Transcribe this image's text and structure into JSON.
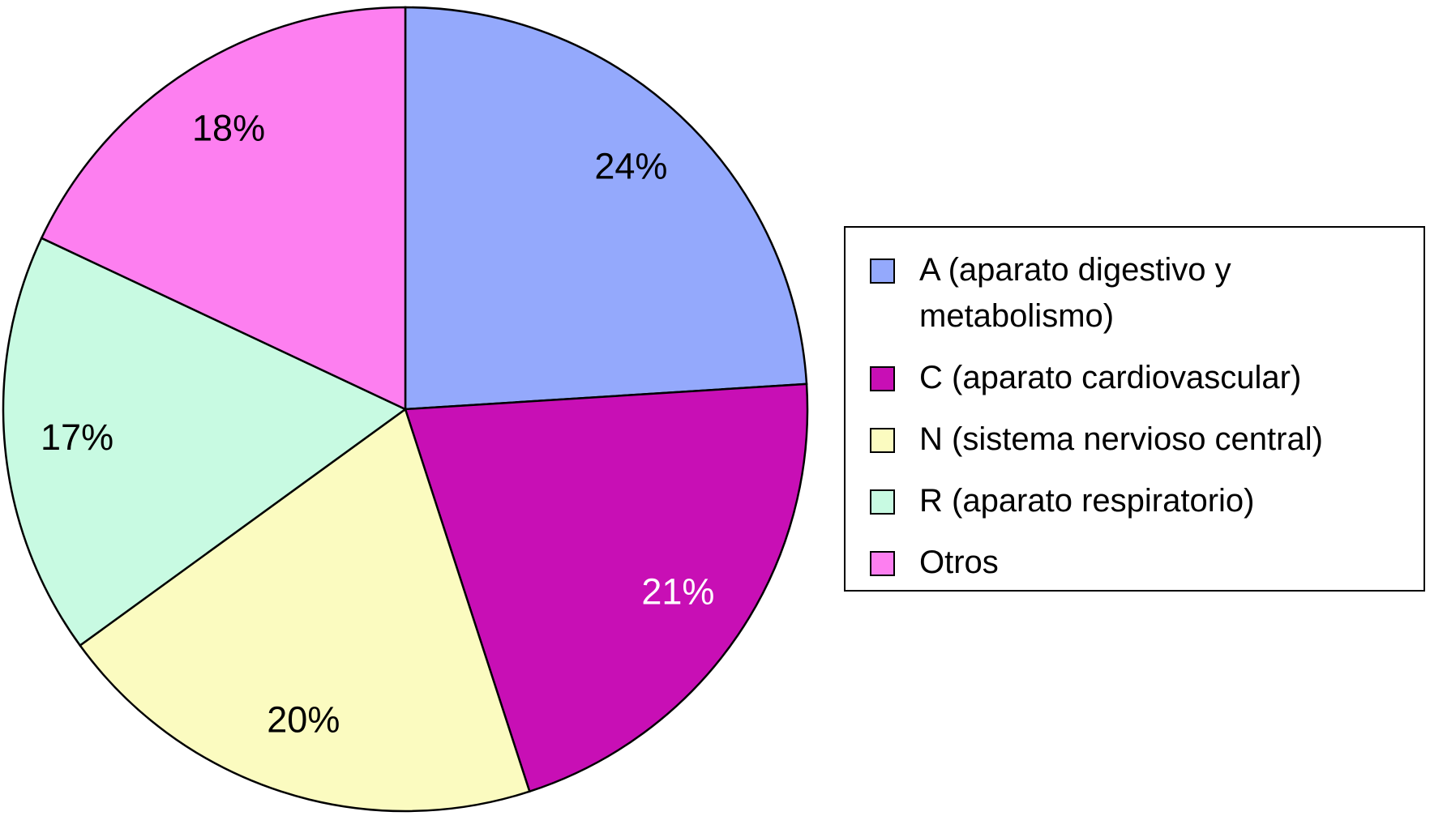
{
  "chart_data": {
    "type": "pie",
    "categories": [
      "A (aparato digestivo y metabolismo)",
      "C (aparato cardiovascular)",
      "N (sistema nervioso central)",
      "R (aparato respiratorio)",
      "Otros"
    ],
    "values": [
      24,
      21,
      20,
      17,
      18
    ],
    "value_labels": [
      "24%",
      "21%",
      "20%",
      "17%",
      "18%"
    ],
    "colors": [
      "#94a9fc",
      "#c80fb5",
      "#fbfbc0",
      "#c8fae2",
      "#fd7ff0"
    ],
    "label_colors": [
      "#000000",
      "#ffffff",
      "#000000",
      "#000000",
      "#000000"
    ],
    "legend": "right"
  }
}
